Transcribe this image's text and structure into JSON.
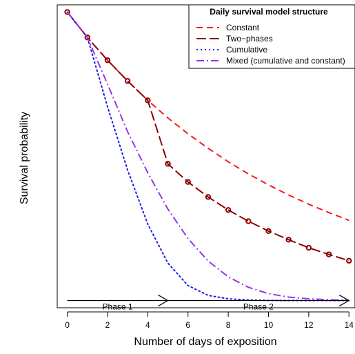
{
  "chart_data": {
    "type": "line",
    "xlabel": "Number of days of exposition",
    "ylabel": "Survival probability",
    "xlim": [
      -0.5,
      14.3
    ],
    "ylim": [
      -0.025,
      1.025
    ],
    "x_ticks": [
      "0",
      "2",
      "4",
      "6",
      "8",
      "10",
      "12",
      "14"
    ],
    "legend": {
      "title": "Daily survival model structure",
      "position": "top-right"
    },
    "series": [
      {
        "name": "Constant",
        "style": "dashed",
        "color": "#ee1c1c",
        "x": [
          0,
          1,
          2,
          3,
          4,
          5,
          6,
          7,
          8,
          9,
          10,
          11,
          12,
          13,
          14
        ],
        "y": [
          1.0,
          0.912,
          0.833,
          0.761,
          0.694,
          0.633,
          0.578,
          0.528,
          0.481,
          0.439,
          0.401,
          0.366,
          0.334,
          0.305,
          0.278
        ]
      },
      {
        "name": "Two−phases",
        "style": "longdash",
        "color": "#8b0000",
        "markers": true,
        "x": [
          0,
          1,
          2,
          3,
          4,
          5,
          6,
          7,
          8,
          9,
          10,
          11,
          12,
          13,
          14
        ],
        "y": [
          1.0,
          0.912,
          0.833,
          0.761,
          0.694,
          0.474,
          0.411,
          0.359,
          0.314,
          0.275,
          0.241,
          0.211,
          0.183,
          0.16,
          0.138
        ]
      },
      {
        "name": "Cumulative",
        "style": "dotted",
        "color": "#1a1aee",
        "x": [
          0,
          1,
          2,
          3,
          4,
          5,
          6,
          7,
          8,
          9,
          10,
          11,
          12,
          13,
          14
        ],
        "y": [
          1.0,
          0.912,
          0.672,
          0.452,
          0.265,
          0.13,
          0.052,
          0.018,
          0.006,
          0.002,
          0.0005,
          0.0001,
          0.0,
          0.0,
          0.0
        ]
      },
      {
        "name": "Mixed (cumulative and constant)",
        "style": "dashdot",
        "color": "#9a32e6",
        "x": [
          0,
          1,
          2,
          3,
          4,
          5,
          6,
          7,
          8,
          9,
          10,
          11,
          12,
          13,
          14
        ],
        "y": [
          1.0,
          0.912,
          0.75,
          0.585,
          0.443,
          0.317,
          0.215,
          0.137,
          0.082,
          0.046,
          0.024,
          0.012,
          0.006,
          0.003,
          0.001
        ]
      }
    ],
    "annotations": [
      {
        "label": "Phase 1",
        "from": 0,
        "to": 5,
        "y": 0.0
      },
      {
        "label": "Phase 2",
        "from": 5,
        "to": 14,
        "y": 0.0
      }
    ]
  }
}
